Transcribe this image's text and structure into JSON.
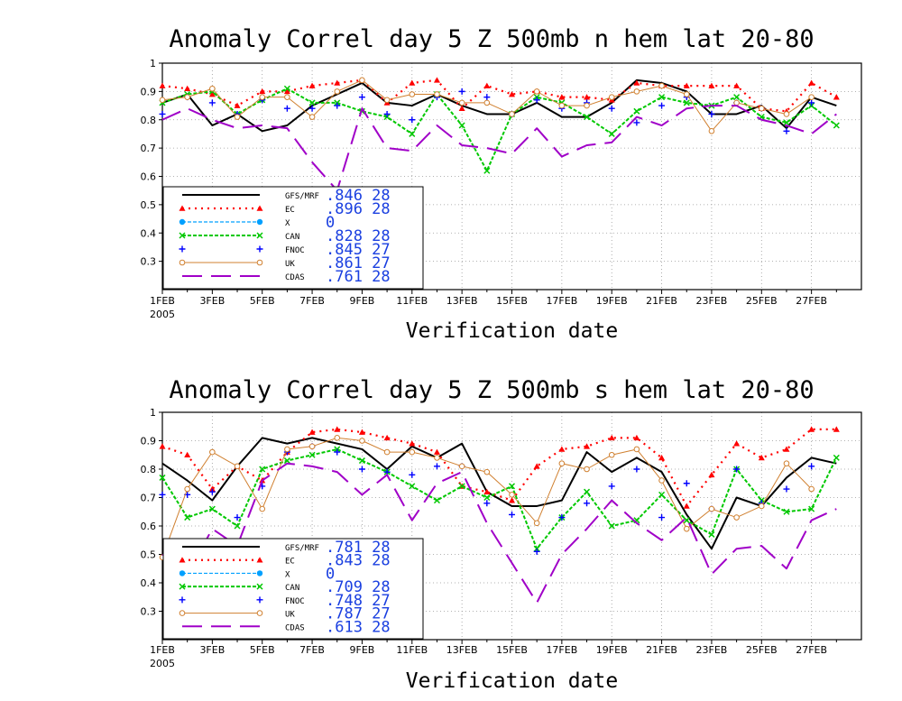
{
  "chart_data": [
    {
      "type": "line",
      "title": "Anomaly Correl  day 5  Z 500mb  n hem  lat 20-80",
      "xlabel": "Verification date",
      "ylabel": "",
      "ylim": [
        0.2,
        1
      ],
      "y_ticks": [
        "1",
        "0.9",
        "0.8",
        "0.7",
        "0.6",
        "0.5",
        "0.4",
        "0.3"
      ],
      "x_ticks": [
        "1FEB",
        "3FEB",
        "5FEB",
        "7FEB",
        "9FEB",
        "11FEB",
        "13FEB",
        "15FEB",
        "17FEB",
        "19FEB",
        "21FEB",
        "23FEB",
        "25FEB",
        "27FEB"
      ],
      "x_sublabel": "2005",
      "grid": true,
      "legend_position": "bottom-left",
      "days": [
        1,
        2,
        3,
        4,
        5,
        6,
        7,
        8,
        9,
        10,
        11,
        12,
        13,
        14,
        15,
        16,
        17,
        18,
        19,
        20,
        21,
        22,
        23,
        24,
        25,
        26,
        27,
        28
      ],
      "series": [
        {
          "name": "GFS/MRF",
          "stat": ".846 28",
          "color": "#000000",
          "values": [
            0.86,
            0.89,
            0.78,
            0.82,
            0.76,
            0.78,
            0.85,
            0.89,
            0.93,
            0.86,
            0.85,
            0.89,
            0.85,
            0.82,
            0.82,
            0.86,
            0.81,
            0.81,
            0.86,
            0.94,
            0.93,
            0.9,
            0.82,
            0.82,
            0.85,
            0.77,
            0.88,
            0.85
          ]
        },
        {
          "name": "EC",
          "stat": ".896 28",
          "color": "#ff0000",
          "values": [
            0.92,
            0.91,
            0.89,
            0.85,
            0.9,
            0.9,
            0.92,
            0.93,
            0.94,
            0.86,
            0.93,
            0.94,
            0.84,
            0.92,
            0.89,
            0.9,
            0.88,
            0.88,
            0.87,
            0.93,
            0.92,
            0.92,
            0.92,
            0.92,
            0.84,
            0.83,
            0.93,
            0.88
          ]
        },
        {
          "name": "X",
          "stat": "0",
          "color": "#00a0ff",
          "values": []
        },
        {
          "name": "CAN",
          "stat": ".828 28",
          "color": "#00c800",
          "values": [
            0.86,
            0.89,
            0.9,
            0.82,
            0.87,
            0.91,
            0.86,
            0.86,
            0.83,
            0.81,
            0.75,
            0.89,
            0.78,
            0.62,
            0.82,
            0.88,
            0.86,
            0.81,
            0.75,
            0.83,
            0.88,
            0.86,
            0.85,
            0.88,
            0.81,
            0.79,
            0.85,
            0.78
          ]
        },
        {
          "name": "FNOC",
          "stat": ".845 27",
          "color": "#0000ff",
          "values": [
            0.82,
            0.88,
            0.86,
            0.82,
            0.87,
            0.84,
            0.84,
            0.85,
            0.88,
            0.82,
            0.8,
            0.88,
            0.9,
            0.88,
            0.82,
            0.87,
            0.84,
            0.86,
            0.84,
            0.79,
            0.85,
            0.88,
            0.82,
            0.86,
            0.84,
            0.76,
            0.86,
            null
          ]
        },
        {
          "name": "UK",
          "stat": ".861 27",
          "color": "#d08030",
          "values": [
            0.87,
            0.88,
            0.91,
            0.81,
            0.88,
            0.88,
            0.81,
            0.9,
            0.94,
            0.87,
            0.89,
            0.89,
            0.86,
            0.86,
            0.82,
            0.9,
            0.85,
            0.85,
            0.88,
            0.9,
            0.92,
            0.89,
            0.76,
            0.86,
            0.84,
            0.82,
            0.88,
            null
          ]
        },
        {
          "name": "CDAS",
          "stat": ".761 28",
          "color": "#a000c8",
          "values": [
            0.8,
            0.84,
            0.8,
            0.77,
            0.78,
            0.77,
            0.65,
            0.55,
            0.84,
            0.7,
            0.69,
            0.78,
            0.71,
            0.7,
            0.68,
            0.77,
            0.67,
            0.71,
            0.72,
            0.81,
            0.78,
            0.84,
            0.85,
            0.85,
            0.8,
            0.78,
            0.75,
            0.82
          ]
        }
      ]
    },
    {
      "type": "line",
      "title": "Anomaly Correl  day 5  Z 500mb  s hem  lat 20-80",
      "xlabel": "Verification date",
      "ylabel": "",
      "ylim": [
        0.2,
        1
      ],
      "y_ticks": [
        "1",
        "0.9",
        "0.8",
        "0.7",
        "0.6",
        "0.5",
        "0.4",
        "0.3"
      ],
      "x_ticks": [
        "1FEB",
        "3FEB",
        "5FEB",
        "7FEB",
        "9FEB",
        "11FEB",
        "13FEB",
        "15FEB",
        "17FEB",
        "19FEB",
        "21FEB",
        "23FEB",
        "25FEB",
        "27FEB"
      ],
      "x_sublabel": "2005",
      "grid": true,
      "legend_position": "bottom-left",
      "days": [
        1,
        2,
        3,
        4,
        5,
        6,
        7,
        8,
        9,
        10,
        11,
        12,
        13,
        14,
        15,
        16,
        17,
        18,
        19,
        20,
        21,
        22,
        23,
        24,
        25,
        26,
        27,
        28
      ],
      "series": [
        {
          "name": "GFS/MRF",
          "stat": ".781 28",
          "color": "#000000",
          "values": [
            0.82,
            0.76,
            0.69,
            0.81,
            0.91,
            0.89,
            0.91,
            0.89,
            0.87,
            0.8,
            0.88,
            0.84,
            0.89,
            0.72,
            0.67,
            0.67,
            0.69,
            0.86,
            0.79,
            0.84,
            0.79,
            0.64,
            0.52,
            0.7,
            0.67,
            0.77,
            0.84,
            0.82
          ]
        },
        {
          "name": "EC",
          "stat": ".843 28",
          "color": "#ff0000",
          "values": [
            0.88,
            0.85,
            0.73,
            0.81,
            0.76,
            0.86,
            0.93,
            0.94,
            0.93,
            0.91,
            0.89,
            0.86,
            0.74,
            0.72,
            0.69,
            0.81,
            0.87,
            0.88,
            0.91,
            0.91,
            0.84,
            0.67,
            0.78,
            0.89,
            0.84,
            0.87,
            0.94,
            0.94
          ]
        },
        {
          "name": "X",
          "stat": "0",
          "color": "#00a0ff",
          "values": []
        },
        {
          "name": "CAN",
          "stat": ".709 28",
          "color": "#00c800",
          "values": [
            0.77,
            0.63,
            0.66,
            0.6,
            0.8,
            0.83,
            0.85,
            0.87,
            0.83,
            0.79,
            0.74,
            0.69,
            0.74,
            0.7,
            0.74,
            0.52,
            0.63,
            0.72,
            0.6,
            0.62,
            0.71,
            0.62,
            0.57,
            0.8,
            0.69,
            0.65,
            0.66,
            0.84
          ]
        },
        {
          "name": "FNOC",
          "stat": ".748 27",
          "color": "#0000ff",
          "values": [
            0.71,
            0.71,
            0.72,
            0.63,
            0.74,
            0.86,
            0.88,
            0.86,
            0.8,
            0.79,
            0.78,
            0.81,
            0.81,
            0.68,
            0.64,
            0.51,
            0.63,
            0.68,
            0.74,
            0.8,
            0.63,
            0.75,
            0.66,
            0.8,
            0.68,
            0.73,
            0.81,
            null
          ]
        },
        {
          "name": "UK",
          "stat": ".787 27",
          "color": "#d08030",
          "values": [
            0.49,
            0.73,
            0.86,
            0.81,
            0.66,
            0.87,
            0.88,
            0.91,
            0.9,
            0.86,
            0.86,
            0.84,
            0.81,
            0.79,
            0.71,
            0.61,
            0.82,
            0.8,
            0.85,
            0.87,
            0.76,
            0.59,
            0.66,
            0.63,
            0.67,
            0.82,
            0.73,
            null
          ]
        },
        {
          "name": "CDAS",
          "stat": ".613 28",
          "color": "#a000c8",
          "values": [
            0.5,
            0.43,
            0.59,
            0.53,
            0.76,
            0.82,
            0.81,
            0.79,
            0.71,
            0.78,
            0.62,
            0.75,
            0.79,
            0.61,
            0.47,
            0.33,
            0.5,
            0.59,
            0.69,
            0.61,
            0.55,
            0.63,
            0.43,
            0.52,
            0.53,
            0.45,
            0.62,
            0.66
          ]
        }
      ]
    }
  ]
}
